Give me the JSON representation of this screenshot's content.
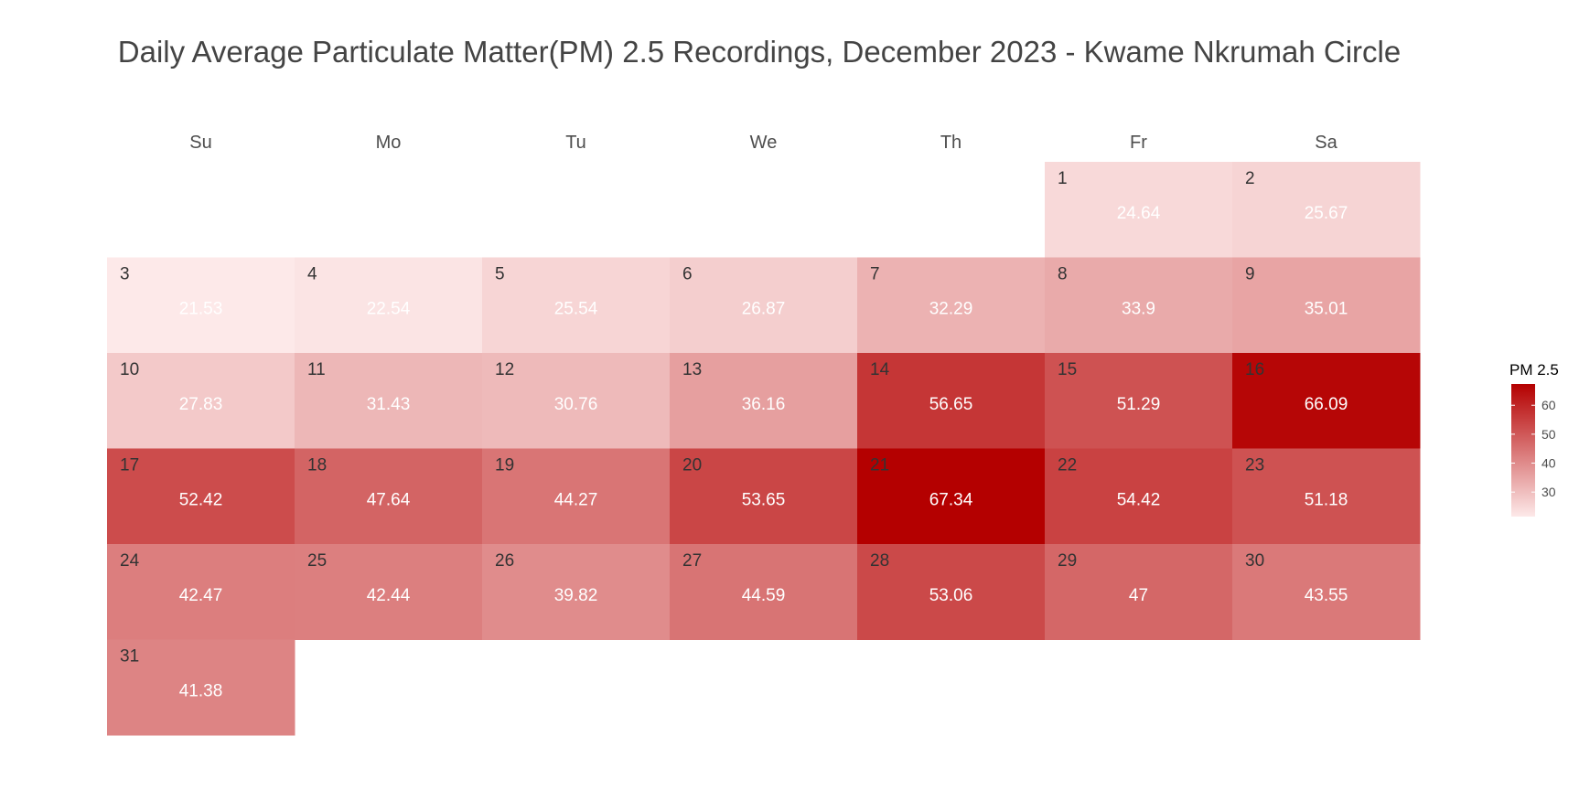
{
  "chart_data": {
    "type": "heatmap",
    "title": "Daily Average Particulate Matter(PM) 2.5 Recordings, December 2023 - Kwame Nkrumah Circle",
    "weekdays": [
      "Su",
      "Mo",
      "Tu",
      "We",
      "Th",
      "Fr",
      "Sa"
    ],
    "first_weekday_index": 5,
    "days": [
      1,
      2,
      3,
      4,
      5,
      6,
      7,
      8,
      9,
      10,
      11,
      12,
      13,
      14,
      15,
      16,
      17,
      18,
      19,
      20,
      21,
      22,
      23,
      24,
      25,
      26,
      27,
      28,
      29,
      30,
      31
    ],
    "values": [
      "24.64",
      "25.67",
      "21.53",
      "22.54",
      "25.54",
      "26.87",
      "32.29",
      "33.9",
      "35.01",
      "27.83",
      "31.43",
      "30.76",
      "36.16",
      "56.65",
      "51.29",
      "66.09",
      "52.42",
      "47.64",
      "44.27",
      "53.65",
      "67.34",
      "54.42",
      "51.18",
      "42.47",
      "42.44",
      "39.82",
      "44.59",
      "53.06",
      "47",
      "43.55",
      "41.38"
    ],
    "legend": {
      "title": "PM 2.5",
      "ticks": [
        30,
        40,
        50,
        60
      ],
      "range": [
        21.53,
        67.34
      ],
      "position": "right"
    },
    "colors": {
      "low": "#fde9e9",
      "high": "#b40000",
      "title_text": "#444444",
      "weekday_text": "#4d4d4d",
      "day_number_text": "#333333",
      "value_text": "#ffffff"
    }
  }
}
